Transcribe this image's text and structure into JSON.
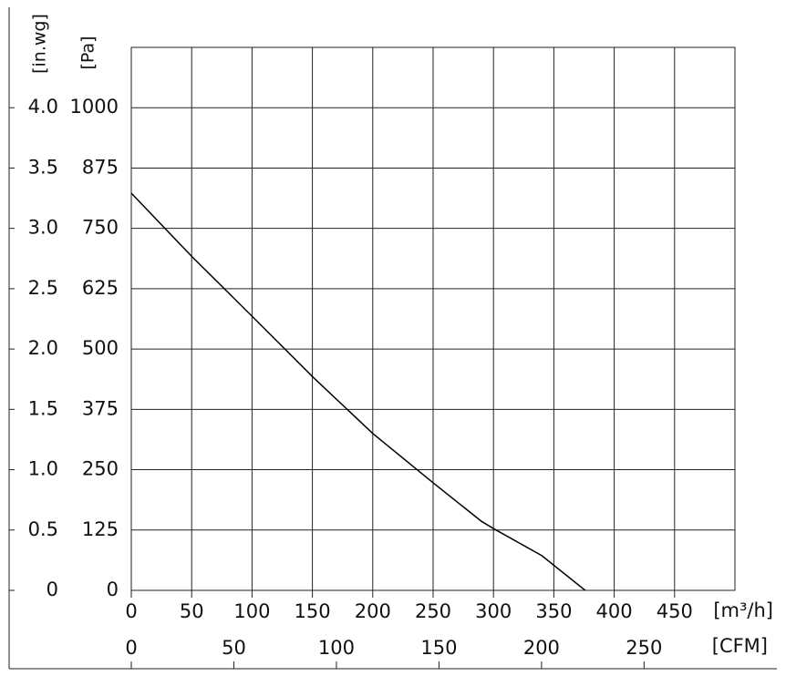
{
  "chart_data": {
    "type": "line",
    "x": [
      0,
      50,
      100,
      150,
      200,
      250,
      290,
      300,
      340,
      376
    ],
    "values": [
      823,
      692,
      568,
      443,
      325,
      223,
      143,
      128,
      72,
      0
    ],
    "color": "#000000",
    "xlim": [
      0,
      500
    ],
    "xticks": [
      0,
      50,
      100,
      150,
      200,
      250,
      300,
      350,
      400,
      450
    ],
    "xlabel": "[m³/h]",
    "x2lim": [
      0,
      294.3
    ],
    "x2ticks": [
      0,
      50,
      100,
      150,
      200,
      250
    ],
    "x2label": "[CFM]",
    "ylim": [
      0,
      1125
    ],
    "yticks": [
      0,
      125,
      250,
      375,
      500,
      625,
      750,
      875,
      1000
    ],
    "ylabel": "[Pa]",
    "y2lim": [
      0,
      4.5
    ],
    "y2ticks": [
      0,
      0.5,
      {
        "value": 1,
        "label": "1.0"
      },
      1.5,
      {
        "value": 2,
        "label": "2.0"
      },
      2.5,
      {
        "value": 3,
        "label": "3.0"
      },
      3.5,
      {
        "value": 4,
        "label": "4.0"
      }
    ],
    "y2label": "[in.wg]",
    "grid": true
  }
}
